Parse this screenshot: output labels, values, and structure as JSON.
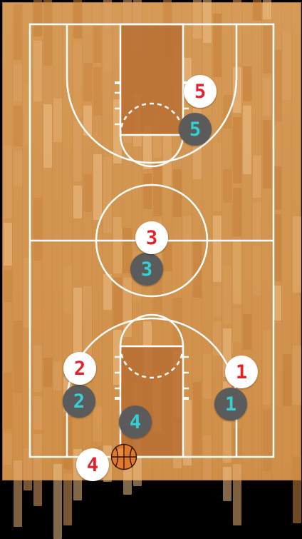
{
  "colors": {
    "offense_fill": "#ffffff",
    "offense_text": "#e8202a",
    "defense_fill": "#5b5b5b",
    "defense_text": "#35d0d6",
    "court_line": "#ffffff",
    "paint": "#b96f33",
    "wood": "#d3944f"
  },
  "players": {
    "offense": [
      {
        "label": "1"
      },
      {
        "label": "2"
      },
      {
        "label": "3"
      },
      {
        "label": "4"
      },
      {
        "label": "5"
      }
    ],
    "defense": [
      {
        "label": "1"
      },
      {
        "label": "2"
      },
      {
        "label": "3"
      },
      {
        "label": "4"
      },
      {
        "label": "5"
      }
    ]
  },
  "ball": {
    "icon": "basketball-icon"
  }
}
